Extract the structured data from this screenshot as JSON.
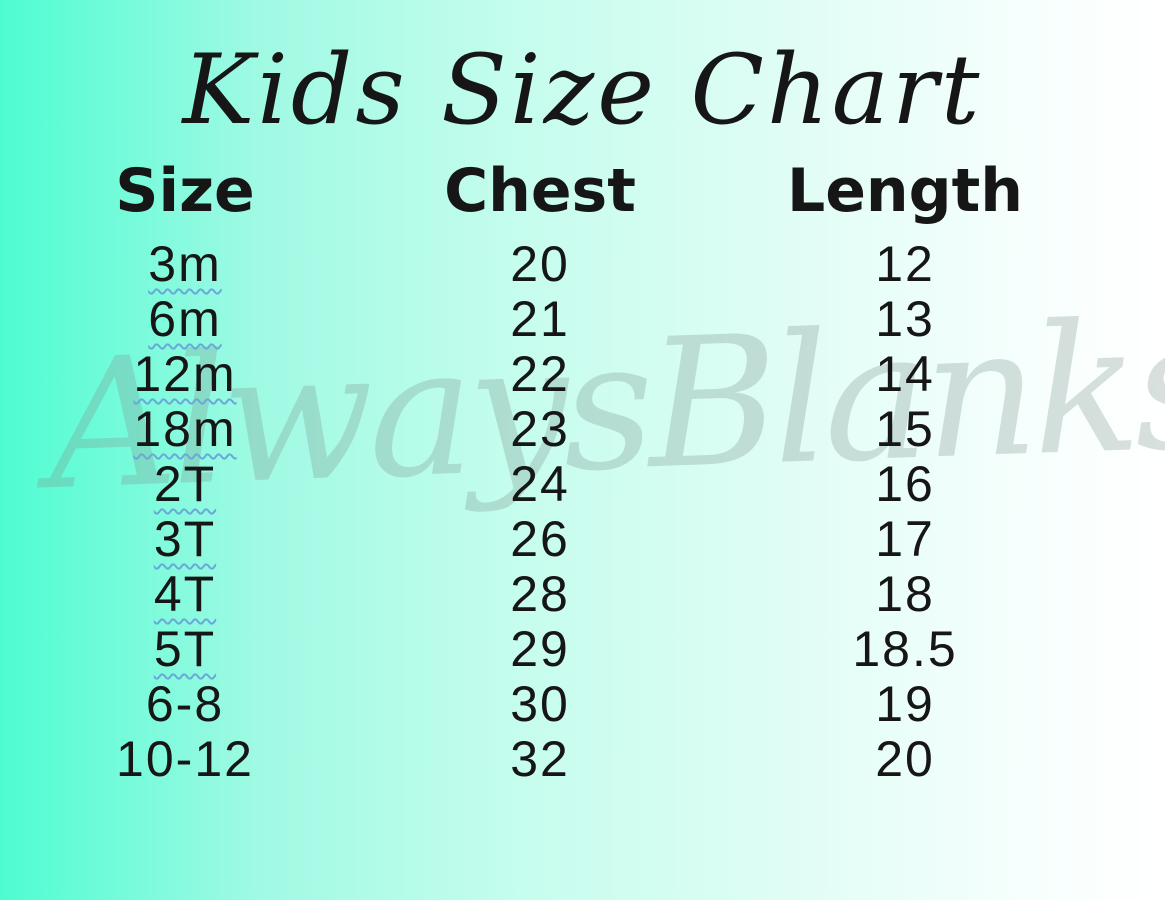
{
  "title": "Kids Size Chart",
  "watermark": "AlwaysBlanks",
  "colors": {
    "background_left": "#4efcd2",
    "background_right": "#ffffff",
    "text": "#161616",
    "spellcheck_underline": "#69a8d8",
    "watermark_text": "rgba(125, 148, 142, 0.30)"
  },
  "chart_data": {
    "type": "table",
    "title": "Kids Size Chart",
    "columns": [
      "Size",
      "Chest",
      "Length"
    ],
    "rows": [
      {
        "size": "3m",
        "chest": "20",
        "length": "12",
        "spellcheck_underline": true
      },
      {
        "size": "6m",
        "chest": "21",
        "length": "13",
        "spellcheck_underline": true
      },
      {
        "size": "12m",
        "chest": "22",
        "length": "14",
        "spellcheck_underline": true
      },
      {
        "size": "18m",
        "chest": "23",
        "length": "15",
        "spellcheck_underline": true
      },
      {
        "size": "2T",
        "chest": "24",
        "length": "16",
        "spellcheck_underline": true
      },
      {
        "size": "3T",
        "chest": "26",
        "length": "17",
        "spellcheck_underline": true
      },
      {
        "size": "4T",
        "chest": "28",
        "length": "18",
        "spellcheck_underline": true
      },
      {
        "size": "5T",
        "chest": "29",
        "length": "18.5",
        "spellcheck_underline": true
      },
      {
        "size": "6-8",
        "chest": "30",
        "length": "19",
        "spellcheck_underline": false
      },
      {
        "size": "10-12",
        "chest": "32",
        "length": "20",
        "spellcheck_underline": false
      }
    ]
  }
}
